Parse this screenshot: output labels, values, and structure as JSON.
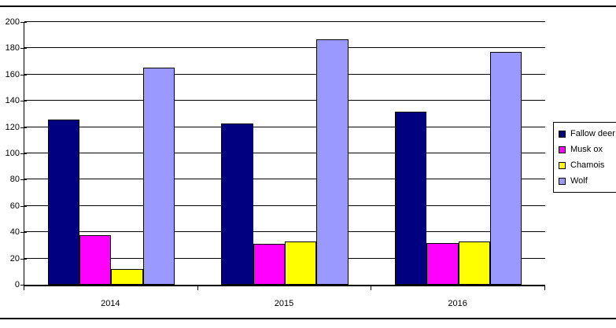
{
  "chart_data": {
    "type": "bar",
    "title": "",
    "categories": [
      "2014",
      "2015",
      "2016"
    ],
    "series": [
      {
        "name": "Fallow deer",
        "color": "#000080",
        "values": [
          126,
          123,
          132
        ]
      },
      {
        "name": "Musk ox",
        "color": "#FF00FF",
        "values": [
          38,
          31,
          32
        ]
      },
      {
        "name": "Chamois",
        "color": "#FFFF00",
        "values": [
          12,
          33,
          33
        ]
      },
      {
        "name": "Wolf",
        "color": "#9999FF",
        "values": [
          165,
          187,
          177
        ]
      }
    ],
    "ylim": [
      0,
      200
    ],
    "ytick_step": 20,
    "y_tick_labels": [
      "0",
      "20",
      "40",
      "60",
      "80",
      "100",
      "120",
      "140",
      "160",
      "180",
      "200"
    ],
    "xlabel": "",
    "ylabel": "",
    "grid": true,
    "legend_position": "right",
    "gridline_color": "#000000",
    "background_color": "#FFFFFF",
    "frame_border_color": "#000000"
  }
}
